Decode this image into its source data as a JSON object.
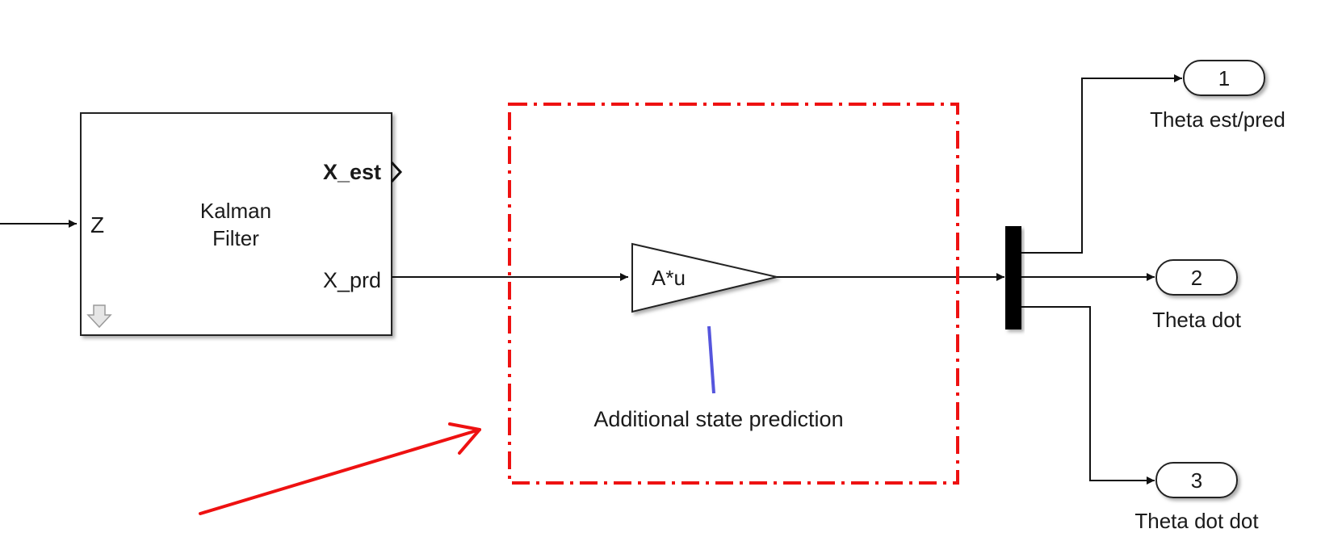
{
  "kalman_block": {
    "title_line1": "Kalman",
    "title_line2": "Filter",
    "input_port": "Z",
    "output_port_est": "X_est",
    "output_port_prd": "X_prd"
  },
  "gain_block": {
    "label": "A*u"
  },
  "annotation": {
    "text": "Additional  state prediction"
  },
  "outports": [
    {
      "number": "1",
      "label": "Theta est/pred"
    },
    {
      "number": "2",
      "label": "Theta dot"
    },
    {
      "number": "3",
      "label": "Theta dot dot"
    }
  ],
  "colors": {
    "highlight": "#ee1111",
    "annotation_line": "#5555dd",
    "block_stroke": "#222222"
  }
}
